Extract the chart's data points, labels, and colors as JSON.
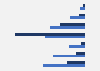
{
  "n_groups": 7,
  "values_dark": [
    -1.8,
    -0.9,
    -0.35,
    -7.0,
    -2.5,
    -0.6,
    -0.2
  ],
  "values_light": [
    -4.2,
    -3.2,
    -1.6,
    -4.0,
    -3.5,
    -1.5,
    -0.5
  ],
  "color_light": "#4472c4",
  "color_dark": "#1f3864",
  "xlim": [
    -8.5,
    1.5
  ],
  "bar_height": 0.28,
  "bg_color": "#f2f2f2",
  "grid_color": "#ffffff"
}
